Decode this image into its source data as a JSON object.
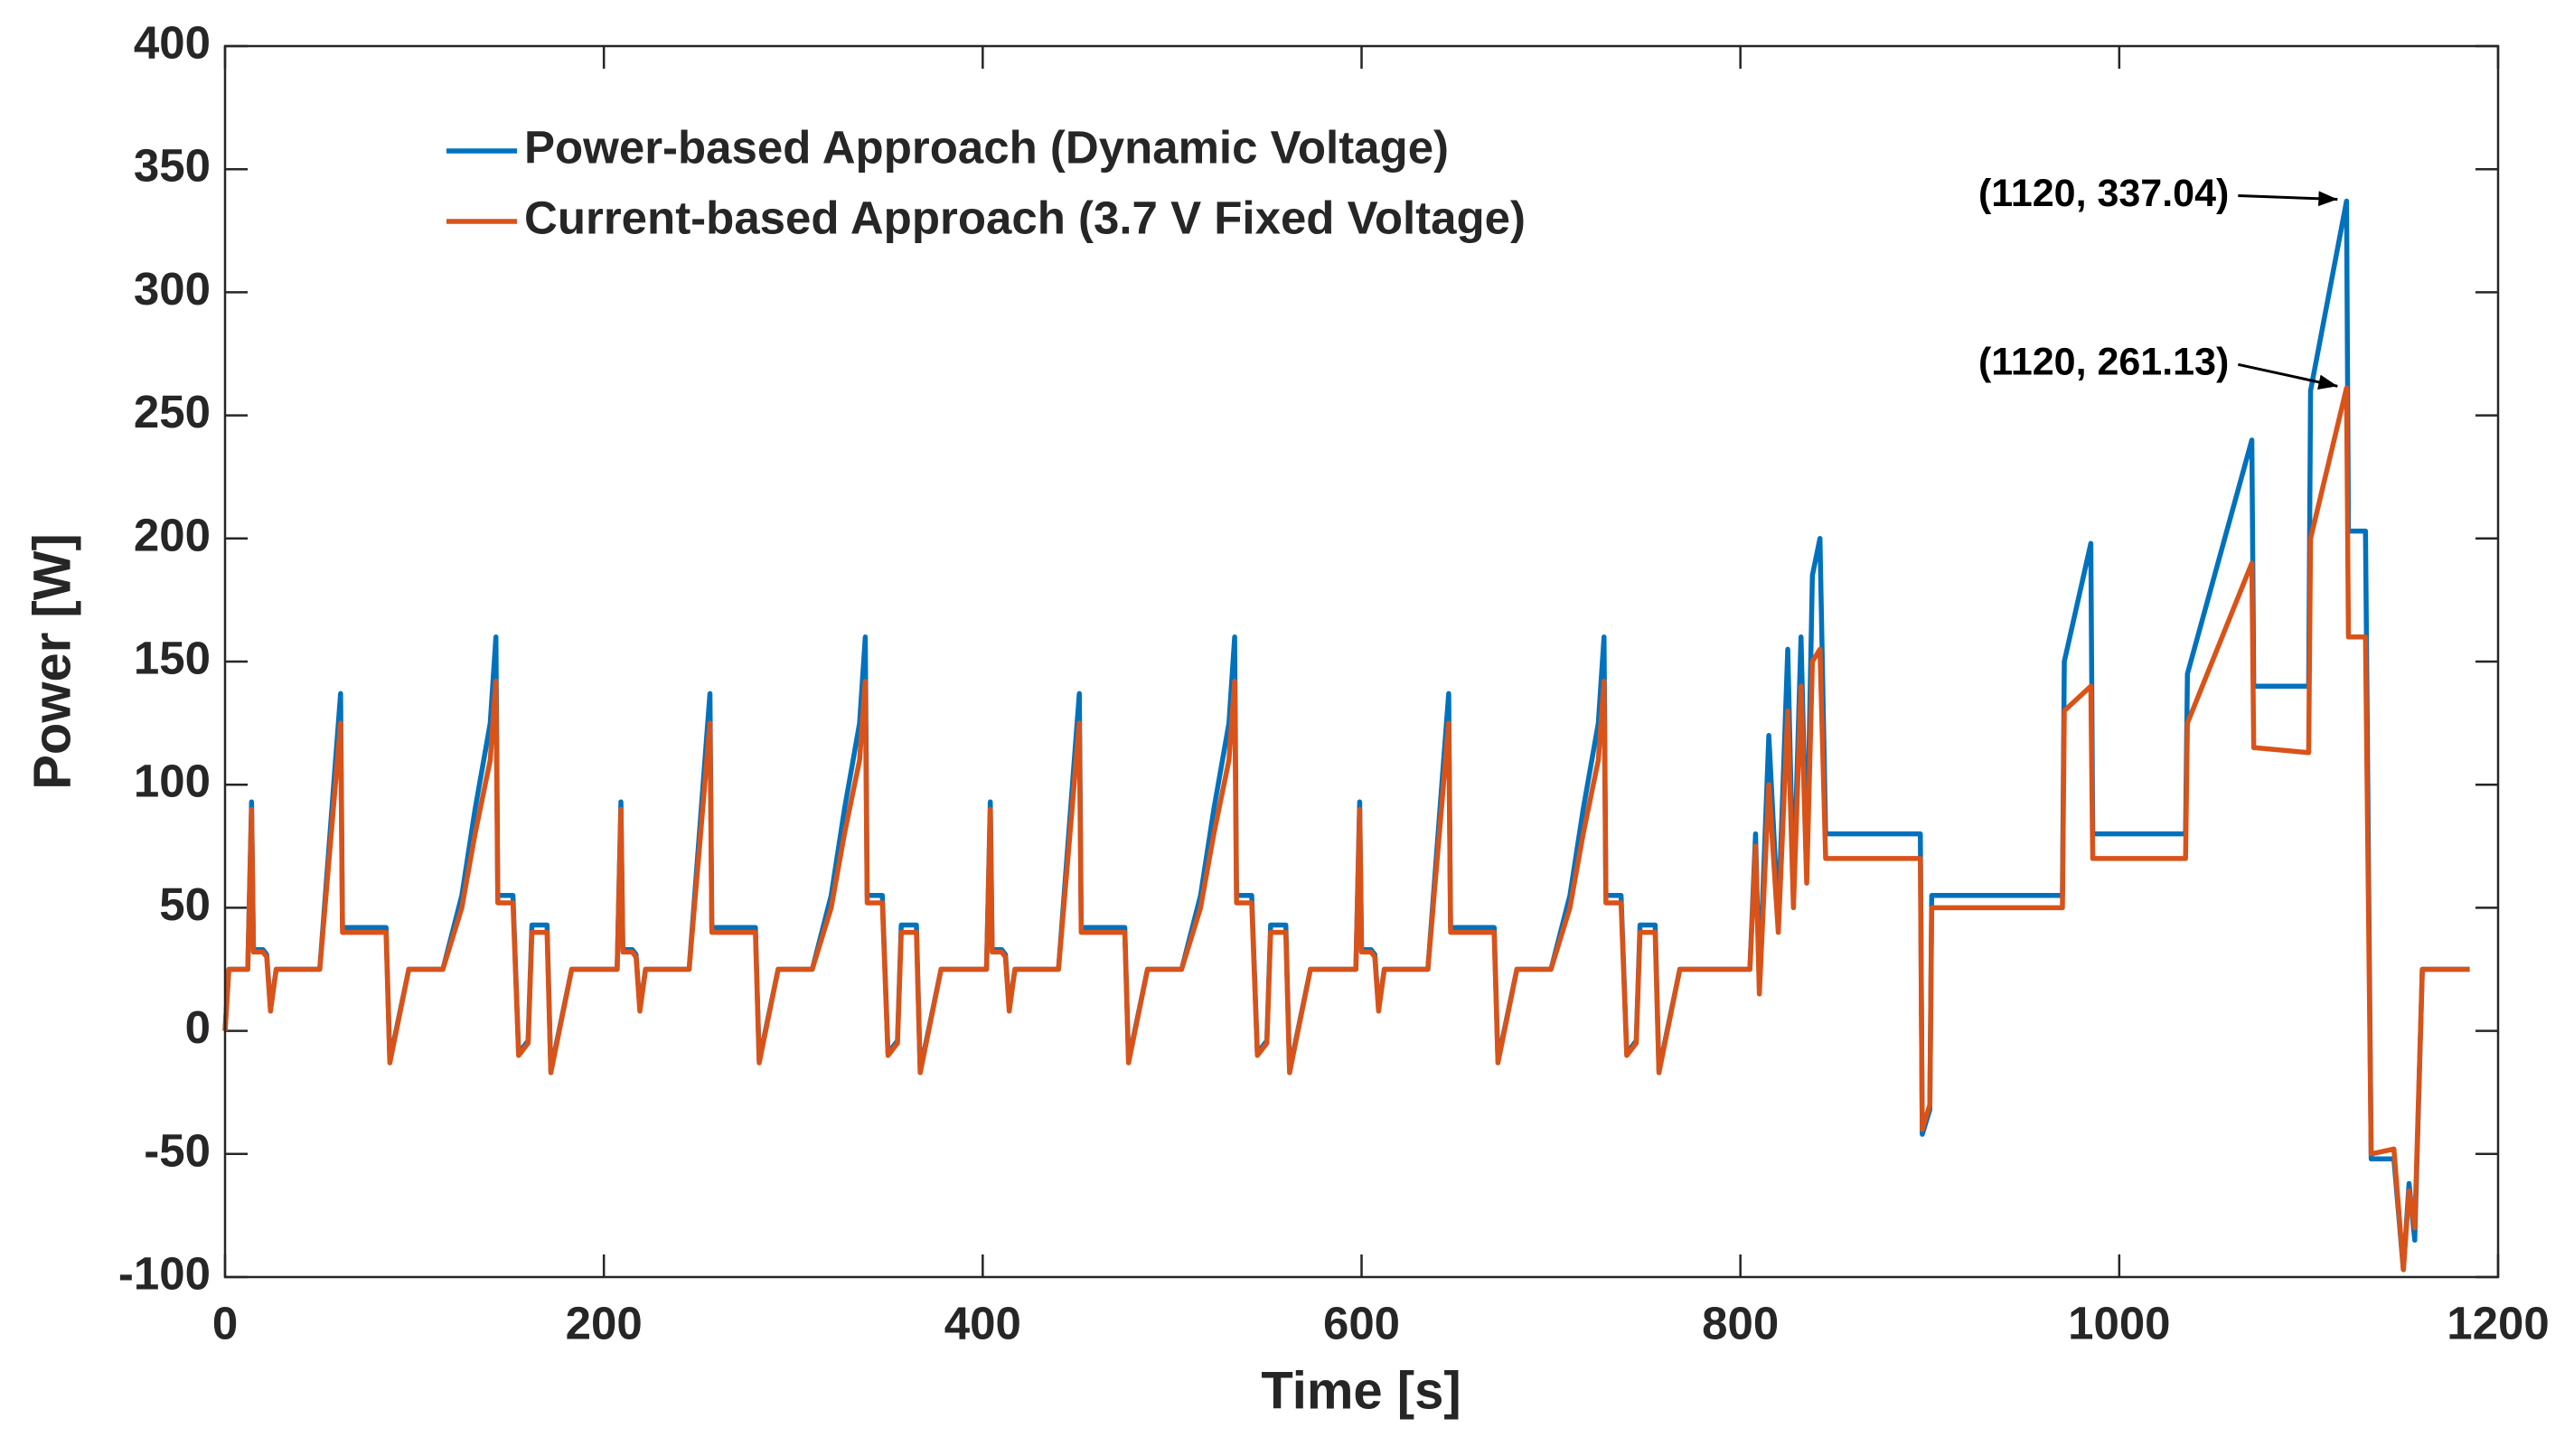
{
  "chart_data": {
    "type": "line",
    "xlabel": "Time [s]",
    "ylabel": "Power [W]",
    "xlim": [
      0,
      1200
    ],
    "xticks": [
      0,
      200,
      400,
      600,
      800,
      1000,
      1200
    ],
    "ylim": [
      -100,
      400
    ],
    "yticks": [
      -100,
      -50,
      0,
      50,
      100,
      150,
      200,
      250,
      300,
      350,
      400
    ],
    "grid": false,
    "legend": "upper left",
    "x": [
      0,
      2,
      12,
      14,
      15,
      20,
      22,
      24,
      27,
      50,
      61,
      62,
      85,
      87,
      97,
      115,
      125,
      132,
      140,
      143,
      144,
      152,
      155,
      160,
      162,
      170,
      172,
      183,
      195,
      197,
      207,
      209,
      210,
      215,
      217,
      219,
      222,
      245,
      256,
      257,
      280,
      282,
      292,
      310,
      320,
      327,
      335,
      338,
      339,
      347,
      350,
      355,
      357,
      365,
      367,
      378,
      390,
      392,
      402,
      404,
      405,
      410,
      412,
      414,
      417,
      440,
      451,
      452,
      475,
      477,
      487,
      505,
      515,
      522,
      530,
      533,
      534,
      542,
      545,
      550,
      552,
      560,
      562,
      573,
      585,
      587,
      597,
      599,
      600,
      605,
      607,
      609,
      612,
      635,
      646,
      647,
      670,
      672,
      682,
      700,
      710,
      717,
      725,
      728,
      729,
      737,
      740,
      745,
      747,
      755,
      757,
      768,
      780,
      805,
      808,
      810,
      815,
      820,
      825,
      828,
      832,
      835,
      838,
      842,
      845,
      846,
      895,
      896,
      900,
      901,
      970,
      971,
      985,
      986,
      1035,
      1036,
      1070,
      1071,
      1072,
      1100,
      1101,
      1120,
      1121,
      1130,
      1133,
      1145,
      1150,
      1153,
      1156,
      1160,
      1185
    ],
    "series": [
      {
        "name": "Power-based Approach (Dynamic Voltage)",
        "color": "#0072bd",
        "values": [
          0,
          25,
          25,
          93,
          33,
          33,
          31,
          9,
          25,
          25,
          137,
          42,
          42,
          -12,
          25,
          25,
          55,
          90,
          125,
          160,
          55,
          55,
          -9,
          -4,
          43,
          43,
          -16,
          25,
          25,
          25,
          25,
          93,
          33,
          33,
          31,
          9,
          25,
          25,
          137,
          42,
          42,
          -12,
          25,
          25,
          55,
          90,
          125,
          160,
          55,
          55,
          -9,
          -4,
          43,
          43,
          -16,
          25,
          25,
          25,
          25,
          93,
          33,
          33,
          31,
          9,
          25,
          25,
          137,
          42,
          42,
          -12,
          25,
          25,
          55,
          90,
          125,
          160,
          55,
          55,
          -9,
          -4,
          43,
          43,
          -16,
          25,
          25,
          25,
          25,
          93,
          33,
          33,
          31,
          9,
          25,
          25,
          137,
          42,
          42,
          -12,
          25,
          25,
          55,
          90,
          125,
          160,
          55,
          55,
          -9,
          -4,
          43,
          43,
          -16,
          25,
          25,
          25,
          80,
          18,
          120,
          45,
          155,
          55,
          160,
          65,
          185,
          200,
          80,
          80,
          80,
          -42,
          -32,
          55,
          55,
          150,
          198,
          80,
          80,
          145,
          240,
          140,
          140,
          140,
          260,
          337.04,
          203,
          203,
          -52,
          -52,
          -97,
          -62,
          -85,
          25,
          25
        ]
      },
      {
        "name": "Current-based Approach (3.7 V Fixed Voltage)",
        "color": "#d95319",
        "values": [
          0,
          25,
          25,
          90,
          32,
          32,
          30,
          8,
          25,
          25,
          125,
          40,
          40,
          -13,
          25,
          25,
          50,
          80,
          110,
          142,
          52,
          52,
          -10,
          -5,
          40,
          40,
          -17,
          25,
          25,
          25,
          25,
          90,
          32,
          32,
          30,
          8,
          25,
          25,
          125,
          40,
          40,
          -13,
          25,
          25,
          50,
          80,
          110,
          142,
          52,
          52,
          -10,
          -5,
          40,
          40,
          -17,
          25,
          25,
          25,
          25,
          90,
          32,
          32,
          30,
          8,
          25,
          25,
          125,
          40,
          40,
          -13,
          25,
          25,
          50,
          80,
          110,
          142,
          52,
          52,
          -10,
          -5,
          40,
          40,
          -17,
          25,
          25,
          25,
          25,
          90,
          32,
          32,
          30,
          8,
          25,
          25,
          125,
          40,
          40,
          -13,
          25,
          25,
          50,
          80,
          110,
          142,
          52,
          52,
          -10,
          -5,
          40,
          40,
          -17,
          25,
          25,
          25,
          75,
          15,
          100,
          40,
          130,
          50,
          140,
          60,
          150,
          155,
          70,
          70,
          70,
          -40,
          -30,
          50,
          50,
          130,
          140,
          70,
          70,
          125,
          190,
          115,
          115,
          113,
          200,
          261.13,
          160,
          160,
          -50,
          -48,
          -97,
          -65,
          -80,
          25,
          25
        ]
      }
    ],
    "annotations": [
      {
        "text": "(1120, 337.04)",
        "x": 1120,
        "y": 337.04
      },
      {
        "text": "(1120, 261.13)",
        "x": 1120,
        "y": 261.13
      }
    ]
  }
}
